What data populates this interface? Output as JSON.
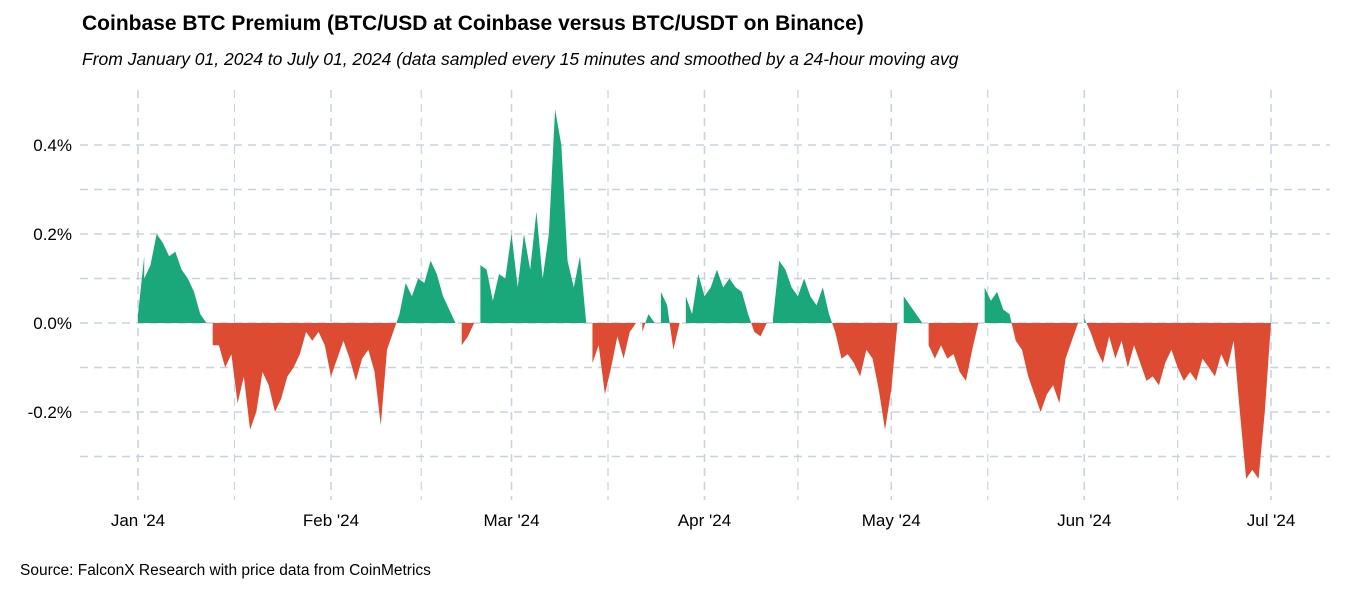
{
  "title": "Coinbase BTC Premium (BTC/USD at Coinbase versus BTC/USDT on Binance)",
  "subtitle": "From January 01, 2024 to July 01, 2024 (data sampled every 15 minutes and smoothed by a 24-hour moving avg",
  "source": "Source: FalconX Research with price data from CoinMetrics",
  "chart_data": {
    "type": "area",
    "title": "Coinbase BTC Premium (BTC/USD at Coinbase versus BTC/USDT on Binance)",
    "subtitle": "From January 01, 2024 to July 01, 2024 (data sampled every 15 minutes and smoothed by a 24-hour moving avg",
    "xlabel": "",
    "ylabel": "",
    "x_range": [
      "2024-01-01",
      "2024-07-01"
    ],
    "ylim": [
      -0.36,
      0.5
    ],
    "x_ticks": [
      {
        "date": "2024-01-01",
        "label": "Jan '24"
      },
      {
        "date": "2024-02-01",
        "label": "Feb '24"
      },
      {
        "date": "2024-03-01",
        "label": "Mar '24"
      },
      {
        "date": "2024-04-01",
        "label": "Apr '24"
      },
      {
        "date": "2024-05-01",
        "label": "May '24"
      },
      {
        "date": "2024-06-01",
        "label": "Jun '24"
      },
      {
        "date": "2024-07-01",
        "label": "Jul '24"
      }
    ],
    "y_ticks": [
      {
        "value": 0.4,
        "label": "0.4%"
      },
      {
        "value": 0.2,
        "label": "0.2%"
      },
      {
        "value": 0.0,
        "label": "0.0%"
      },
      {
        "value": -0.2,
        "label": "-0.2%"
      }
    ],
    "grid": true,
    "colors": {
      "positive": "#1aa87a",
      "negative": "#dc4b32",
      "grid": "#c8d3e0"
    },
    "series": [
      {
        "values_unit": "%",
        "points": [
          [
            "2024-01-01",
            -0.1
          ],
          [
            "2024-01-01",
            0.02
          ],
          [
            "2024-01-02",
            0.15
          ],
          [
            "2024-01-02",
            0.1
          ],
          [
            "2024-01-03",
            0.13
          ],
          [
            "2024-01-04",
            0.2
          ],
          [
            "2024-01-05",
            0.18
          ],
          [
            "2024-01-06",
            0.15
          ],
          [
            "2024-01-07",
            0.16
          ],
          [
            "2024-01-08",
            0.12
          ],
          [
            "2024-01-09",
            0.1
          ],
          [
            "2024-01-10",
            0.07
          ],
          [
            "2024-01-11",
            0.02
          ],
          [
            "2024-01-12",
            0.0
          ],
          [
            "2024-01-13",
            -0.05
          ],
          [
            "2024-01-14",
            -0.05
          ],
          [
            "2024-01-15",
            -0.1
          ],
          [
            "2024-01-16",
            -0.07
          ],
          [
            "2024-01-17",
            -0.18
          ],
          [
            "2024-01-18",
            -0.12
          ],
          [
            "2024-01-19",
            -0.24
          ],
          [
            "2024-01-20",
            -0.2
          ],
          [
            "2024-01-21",
            -0.11
          ],
          [
            "2024-01-22",
            -0.14
          ],
          [
            "2024-01-23",
            -0.2
          ],
          [
            "2024-01-24",
            -0.17
          ],
          [
            "2024-01-25",
            -0.12
          ],
          [
            "2024-01-26",
            -0.1
          ],
          [
            "2024-01-27",
            -0.07
          ],
          [
            "2024-01-28",
            -0.02
          ],
          [
            "2024-01-29",
            -0.04
          ],
          [
            "2024-01-30",
            -0.02
          ],
          [
            "2024-01-31",
            -0.05
          ],
          [
            "2024-02-01",
            -0.12
          ],
          [
            "2024-02-02",
            -0.08
          ],
          [
            "2024-02-03",
            -0.04
          ],
          [
            "2024-02-04",
            -0.08
          ],
          [
            "2024-02-05",
            -0.13
          ],
          [
            "2024-02-06",
            -0.08
          ],
          [
            "2024-02-07",
            -0.06
          ],
          [
            "2024-02-08",
            -0.11
          ],
          [
            "2024-02-09",
            -0.23
          ],
          [
            "2024-02-10",
            -0.06
          ],
          [
            "2024-02-11",
            -0.02
          ],
          [
            "2024-02-12",
            0.02
          ],
          [
            "2024-02-13",
            0.09
          ],
          [
            "2024-02-14",
            0.06
          ],
          [
            "2024-02-15",
            0.1
          ],
          [
            "2024-02-16",
            0.09
          ],
          [
            "2024-02-17",
            0.14
          ],
          [
            "2024-02-18",
            0.11
          ],
          [
            "2024-02-19",
            0.06
          ],
          [
            "2024-02-20",
            0.03
          ],
          [
            "2024-02-21",
            0.0
          ],
          [
            "2024-02-22",
            -0.05
          ],
          [
            "2024-02-23",
            -0.03
          ],
          [
            "2024-02-24",
            0.0
          ],
          [
            "2024-02-25",
            0.13
          ],
          [
            "2024-02-26",
            0.12
          ],
          [
            "2024-02-27",
            0.05
          ],
          [
            "2024-02-28",
            0.11
          ],
          [
            "2024-02-29",
            0.1
          ],
          [
            "2024-03-01",
            0.2
          ],
          [
            "2024-03-02",
            0.08
          ],
          [
            "2024-03-03",
            0.2
          ],
          [
            "2024-03-04",
            0.12
          ],
          [
            "2024-03-05",
            0.25
          ],
          [
            "2024-03-06",
            0.1
          ],
          [
            "2024-03-07",
            0.2
          ],
          [
            "2024-03-08",
            0.48
          ],
          [
            "2024-03-09",
            0.4
          ],
          [
            "2024-03-10",
            0.14
          ],
          [
            "2024-03-11",
            0.08
          ],
          [
            "2024-03-12",
            0.15
          ],
          [
            "2024-03-13",
            0.0
          ],
          [
            "2024-03-14",
            -0.09
          ],
          [
            "2024-03-15",
            -0.05
          ],
          [
            "2024-03-16",
            -0.16
          ],
          [
            "2024-03-17",
            -0.1
          ],
          [
            "2024-03-18",
            -0.03
          ],
          [
            "2024-03-19",
            -0.08
          ],
          [
            "2024-03-20",
            -0.02
          ],
          [
            "2024-03-21",
            0.0
          ],
          [
            "2024-03-22",
            -0.02
          ],
          [
            "2024-03-23",
            0.02
          ],
          [
            "2024-03-24",
            0.0
          ],
          [
            "2024-03-25",
            0.07
          ],
          [
            "2024-03-26",
            0.04
          ],
          [
            "2024-03-27",
            -0.06
          ],
          [
            "2024-03-28",
            0.0
          ],
          [
            "2024-03-29",
            0.06
          ],
          [
            "2024-03-30",
            0.02
          ],
          [
            "2024-03-31",
            0.11
          ],
          [
            "2024-04-01",
            0.06
          ],
          [
            "2024-04-02",
            0.08
          ],
          [
            "2024-04-03",
            0.12
          ],
          [
            "2024-04-04",
            0.08
          ],
          [
            "2024-04-05",
            0.1
          ],
          [
            "2024-04-06",
            0.08
          ],
          [
            "2024-04-07",
            0.07
          ],
          [
            "2024-04-08",
            0.02
          ],
          [
            "2024-04-09",
            -0.02
          ],
          [
            "2024-04-10",
            -0.03
          ],
          [
            "2024-04-11",
            0.0
          ],
          [
            "2024-04-12",
            0.01
          ],
          [
            "2024-04-13",
            0.14
          ],
          [
            "2024-04-14",
            0.12
          ],
          [
            "2024-04-15",
            0.08
          ],
          [
            "2024-04-16",
            0.06
          ],
          [
            "2024-04-17",
            0.1
          ],
          [
            "2024-04-18",
            0.06
          ],
          [
            "2024-04-19",
            0.04
          ],
          [
            "2024-04-20",
            0.08
          ],
          [
            "2024-04-21",
            0.02
          ],
          [
            "2024-04-22",
            -0.02
          ],
          [
            "2024-04-23",
            -0.08
          ],
          [
            "2024-04-24",
            -0.07
          ],
          [
            "2024-04-25",
            -0.09
          ],
          [
            "2024-04-26",
            -0.12
          ],
          [
            "2024-04-27",
            -0.06
          ],
          [
            "2024-04-28",
            -0.08
          ],
          [
            "2024-04-29",
            -0.15
          ],
          [
            "2024-04-30",
            -0.24
          ],
          [
            "2024-05-01",
            -0.15
          ],
          [
            "2024-05-02",
            0.0
          ],
          [
            "2024-05-03",
            0.06
          ],
          [
            "2024-05-04",
            0.04
          ],
          [
            "2024-05-05",
            0.02
          ],
          [
            "2024-05-06",
            0.0
          ],
          [
            "2024-05-07",
            -0.05
          ],
          [
            "2024-05-08",
            -0.08
          ],
          [
            "2024-05-09",
            -0.05
          ],
          [
            "2024-05-10",
            -0.08
          ],
          [
            "2024-05-11",
            -0.07
          ],
          [
            "2024-05-12",
            -0.11
          ],
          [
            "2024-05-13",
            -0.13
          ],
          [
            "2024-05-14",
            -0.06
          ],
          [
            "2024-05-15",
            0.0
          ],
          [
            "2024-05-16",
            0.08
          ],
          [
            "2024-05-17",
            0.05
          ],
          [
            "2024-05-18",
            0.07
          ],
          [
            "2024-05-19",
            0.03
          ],
          [
            "2024-05-20",
            0.02
          ],
          [
            "2024-05-21",
            -0.04
          ],
          [
            "2024-05-22",
            -0.06
          ],
          [
            "2024-05-23",
            -0.12
          ],
          [
            "2024-05-24",
            -0.16
          ],
          [
            "2024-05-25",
            -0.2
          ],
          [
            "2024-05-26",
            -0.16
          ],
          [
            "2024-05-27",
            -0.14
          ],
          [
            "2024-05-28",
            -0.18
          ],
          [
            "2024-05-29",
            -0.08
          ],
          [
            "2024-05-30",
            -0.04
          ],
          [
            "2024-05-31",
            0.0
          ],
          [
            "2024-06-01",
            0.01
          ],
          [
            "2024-06-02",
            -0.02
          ],
          [
            "2024-06-03",
            -0.06
          ],
          [
            "2024-06-04",
            -0.09
          ],
          [
            "2024-06-05",
            -0.03
          ],
          [
            "2024-06-06",
            -0.08
          ],
          [
            "2024-06-07",
            -0.04
          ],
          [
            "2024-06-08",
            -0.1
          ],
          [
            "2024-06-09",
            -0.05
          ],
          [
            "2024-06-10",
            -0.09
          ],
          [
            "2024-06-11",
            -0.13
          ],
          [
            "2024-06-12",
            -0.12
          ],
          [
            "2024-06-13",
            -0.14
          ],
          [
            "2024-06-14",
            -0.09
          ],
          [
            "2024-06-15",
            -0.06
          ],
          [
            "2024-06-16",
            -0.1
          ],
          [
            "2024-06-17",
            -0.13
          ],
          [
            "2024-06-18",
            -0.11
          ],
          [
            "2024-06-19",
            -0.13
          ],
          [
            "2024-06-20",
            -0.08
          ],
          [
            "2024-06-21",
            -0.1
          ],
          [
            "2024-06-22",
            -0.12
          ],
          [
            "2024-06-23",
            -0.07
          ],
          [
            "2024-06-24",
            -0.1
          ],
          [
            "2024-06-25",
            -0.04
          ],
          [
            "2024-06-26",
            -0.2
          ],
          [
            "2024-06-27",
            -0.35
          ],
          [
            "2024-06-28",
            -0.33
          ],
          [
            "2024-06-29",
            -0.35
          ],
          [
            "2024-06-30",
            -0.2
          ],
          [
            "2024-07-01",
            0.0
          ]
        ]
      }
    ]
  }
}
